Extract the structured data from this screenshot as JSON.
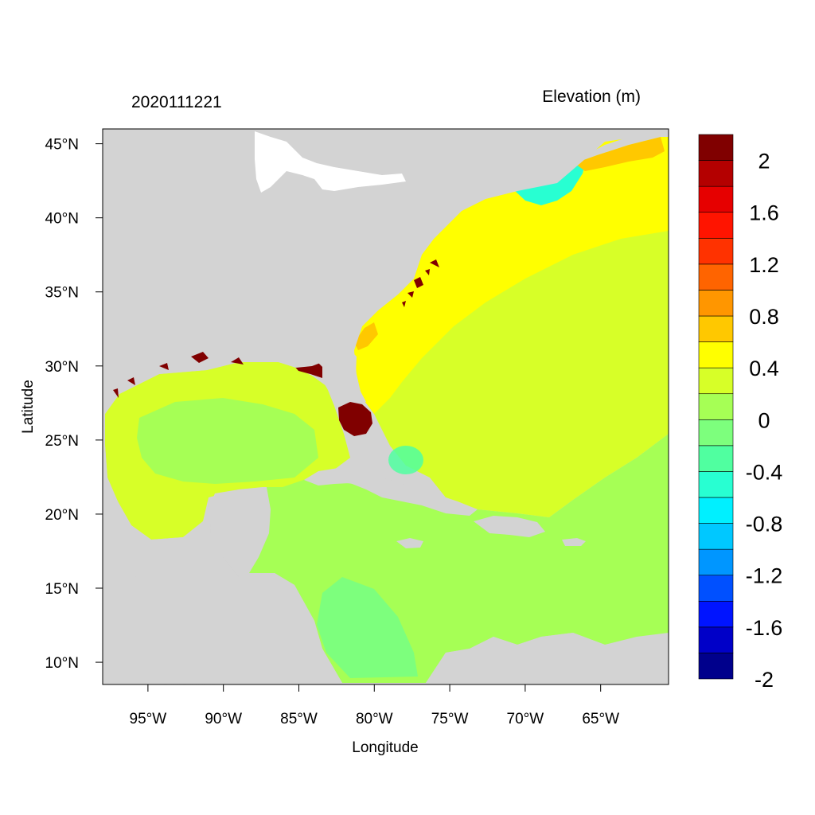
{
  "header": {
    "timestamp": "2020111221",
    "variable": "Elevation (m)"
  },
  "axes": {
    "xlabel": "Longitude",
    "ylabel": "Latitude",
    "lon_range": [
      -98,
      -60.5
    ],
    "lat_range": [
      8.5,
      46
    ],
    "lon_ticks": [
      {
        "value": -95,
        "label": "95°W"
      },
      {
        "value": -90,
        "label": "90°W"
      },
      {
        "value": -85,
        "label": "85°W"
      },
      {
        "value": -80,
        "label": "80°W"
      },
      {
        "value": -75,
        "label": "75°W"
      },
      {
        "value": -70,
        "label": "70°W"
      },
      {
        "value": -65,
        "label": "65°W"
      }
    ],
    "lat_ticks": [
      {
        "value": 45,
        "label": "45°N"
      },
      {
        "value": 40,
        "label": "40°N"
      },
      {
        "value": 35,
        "label": "35°N"
      },
      {
        "value": 30,
        "label": "30°N"
      },
      {
        "value": 25,
        "label": "25°N"
      },
      {
        "value": 20,
        "label": "20°N"
      },
      {
        "value": 15,
        "label": "15°N"
      },
      {
        "value": 10,
        "label": "10°N"
      }
    ]
  },
  "colorbar": {
    "bins": [
      {
        "color": "#00008c"
      },
      {
        "color": "#0000c8"
      },
      {
        "color": "#0014ff"
      },
      {
        "color": "#0050ff"
      },
      {
        "color": "#0096ff"
      },
      {
        "color": "#00c8ff"
      },
      {
        "color": "#00f0ff"
      },
      {
        "color": "#28ffd2"
      },
      {
        "color": "#50ffa0"
      },
      {
        "color": "#7dff7d"
      },
      {
        "color": "#a6ff55"
      },
      {
        "color": "#d7ff28"
      },
      {
        "color": "#ffff00"
      },
      {
        "color": "#ffc800"
      },
      {
        "color": "#ff9600"
      },
      {
        "color": "#ff6400"
      },
      {
        "color": "#ff3200"
      },
      {
        "color": "#ff1400"
      },
      {
        "color": "#e60000"
      },
      {
        "color": "#b40000"
      },
      {
        "color": "#800000"
      }
    ],
    "labels": [
      "2",
      "1.6",
      "1.2",
      "0.8",
      "0.4",
      "0",
      "-0.4",
      "-0.8",
      "-1.2",
      "-1.6",
      "-2"
    ]
  },
  "colors": {
    "land": "#d3d3d3",
    "atlantic_open": "#d7ff28",
    "atlantic_near": "#ffff00",
    "gulf": "#d7ff28",
    "caribbean": "#a6ff55",
    "negative_shelf": "#7dff7d",
    "gulf_of_maine": "#0096ff",
    "florida_surge": "#800000"
  }
}
